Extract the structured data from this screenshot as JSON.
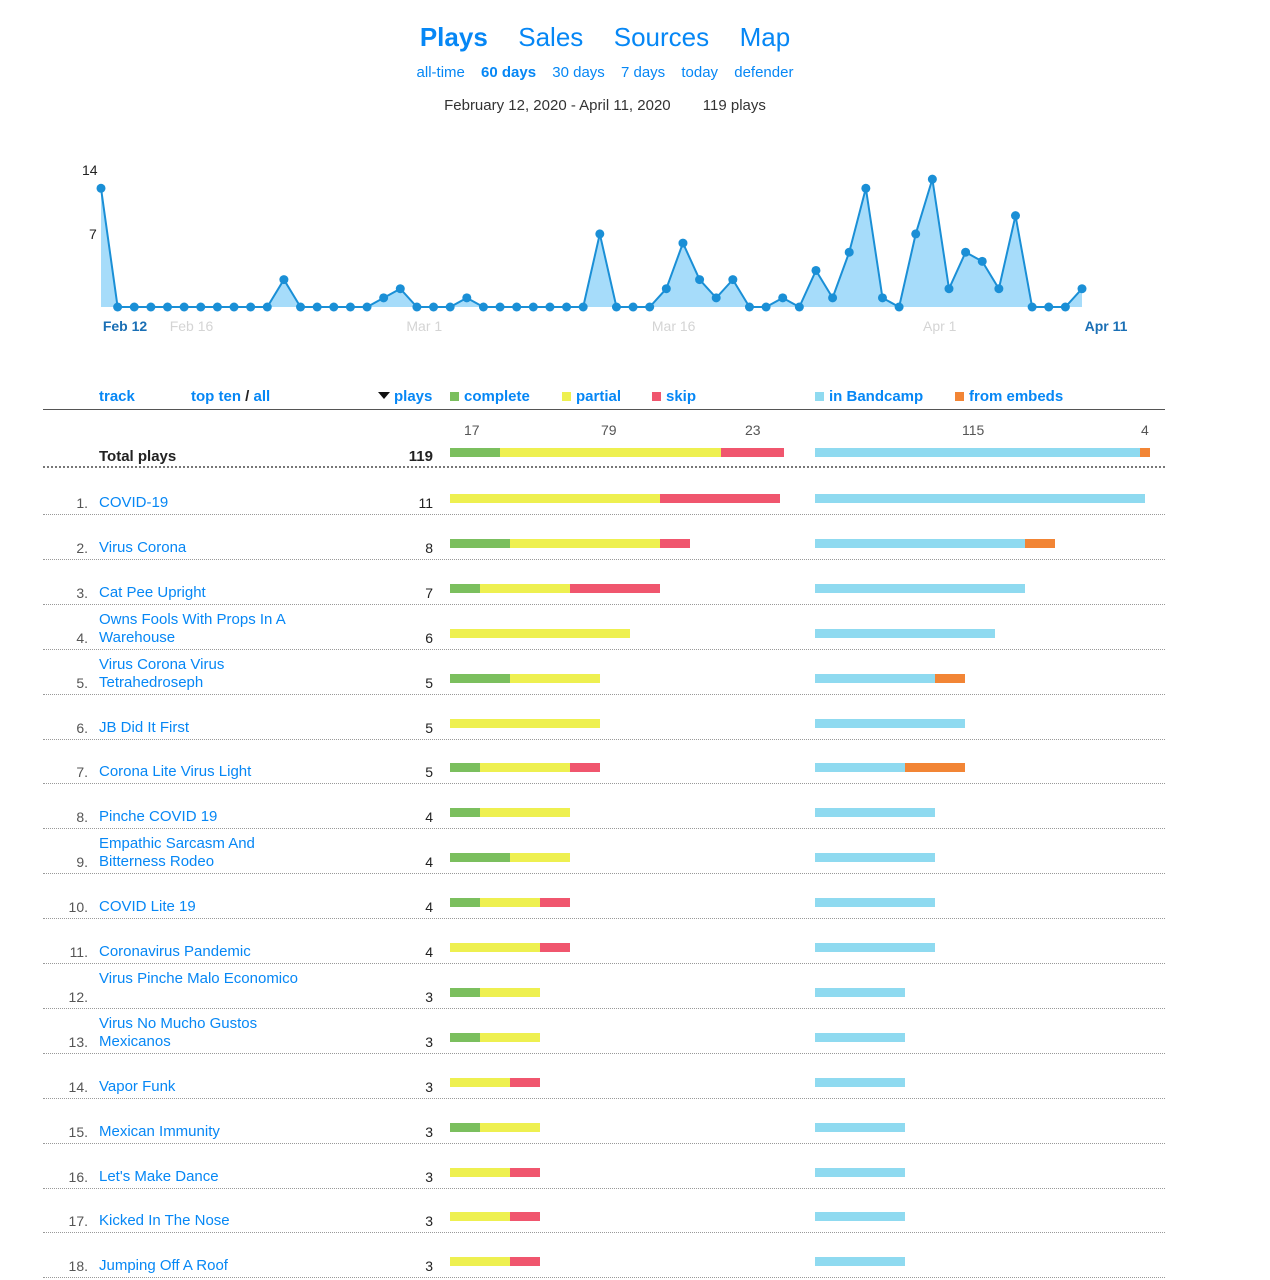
{
  "tabs": [
    {
      "label": "Plays",
      "active": true
    },
    {
      "label": "Sales",
      "active": false
    },
    {
      "label": "Sources",
      "active": false
    },
    {
      "label": "Map",
      "active": false
    }
  ],
  "ranges": [
    {
      "label": "all-time",
      "active": false
    },
    {
      "label": "60 days",
      "active": true
    },
    {
      "label": "30 days",
      "active": false
    },
    {
      "label": "7 days",
      "active": false
    },
    {
      "label": "today",
      "active": false
    },
    {
      "label": "defender",
      "active": false
    }
  ],
  "summary": {
    "date_range": "February 12, 2020 - April 11, 2020",
    "plays": "119 plays"
  },
  "chart_data": {
    "type": "area",
    "y_ticks": [
      "14",
      "7"
    ],
    "ylim": [
      0,
      15
    ],
    "x_labels": [
      {
        "label": "Feb 12",
        "index": 0,
        "bold": true
      },
      {
        "label": "Feb 16",
        "index": 4,
        "bold": false
      },
      {
        "label": "Mar 1",
        "index": 18,
        "bold": false
      },
      {
        "label": "Mar 16",
        "index": 33,
        "bold": false
      },
      {
        "label": "Apr 1",
        "index": 49,
        "bold": false
      },
      {
        "label": "Apr 11",
        "index": 59,
        "bold": true
      }
    ],
    "values": [
      13,
      0,
      0,
      0,
      0,
      0,
      0,
      0,
      0,
      0,
      0,
      3,
      0,
      0,
      0,
      0,
      0,
      1,
      2,
      0,
      0,
      0,
      1,
      0,
      0,
      0,
      0,
      0,
      0,
      0,
      8,
      0,
      0,
      0,
      2,
      7,
      3,
      1,
      3,
      0,
      0,
      1,
      0,
      4,
      1,
      6,
      13,
      1,
      0,
      8,
      14,
      2,
      6,
      5,
      2,
      10,
      0,
      0,
      0,
      2
    ],
    "colors": {
      "fill": "#a6dcfa",
      "line": "#1a8fd6",
      "point": "#1a8fd6"
    }
  },
  "table": {
    "headers": {
      "track": "track",
      "top_ten": "top ten",
      "slash": "/",
      "all": "all",
      "plays": "plays",
      "complete": "complete",
      "partial": "partial",
      "skip": "skip",
      "in_bandcamp": "in Bandcamp",
      "from_embeds": "from embeds"
    },
    "totals": {
      "label": "Total plays",
      "plays": "119",
      "complete": "17",
      "partial": "79",
      "skip": "23",
      "in_bandcamp": "115",
      "from_embeds": "4"
    },
    "rows": [
      {
        "rank": "1.",
        "name": "COVID-19",
        "plays": "11",
        "complete": 0,
        "partial": 7,
        "skip": 4,
        "bandcamp": 11,
        "embeds": 0
      },
      {
        "rank": "2.",
        "name": "Virus Corona",
        "plays": "8",
        "complete": 2,
        "partial": 5,
        "skip": 1,
        "bandcamp": 7,
        "embeds": 1
      },
      {
        "rank": "3.",
        "name": "Cat Pee Upright",
        "plays": "7",
        "complete": 1,
        "partial": 3,
        "skip": 3,
        "bandcamp": 7,
        "embeds": 0
      },
      {
        "rank": "4.",
        "name": "Owns Fools With Props In A Warehouse",
        "plays": "6",
        "complete": 0,
        "partial": 6,
        "skip": 0,
        "bandcamp": 6,
        "embeds": 0
      },
      {
        "rank": "5.",
        "name": "Virus Corona Virus Tetrahedroseph",
        "plays": "5",
        "complete": 2,
        "partial": 3,
        "skip": 0,
        "bandcamp": 4,
        "embeds": 1
      },
      {
        "rank": "6.",
        "name": "JB Did It First",
        "plays": "5",
        "complete": 0,
        "partial": 5,
        "skip": 0,
        "bandcamp": 5,
        "embeds": 0
      },
      {
        "rank": "7.",
        "name": "Corona Lite Virus Light",
        "plays": "5",
        "complete": 1,
        "partial": 3,
        "skip": 1,
        "bandcamp": 3,
        "embeds": 2
      },
      {
        "rank": "8.",
        "name": "Pinche COVID 19",
        "plays": "4",
        "complete": 1,
        "partial": 3,
        "skip": 0,
        "bandcamp": 4,
        "embeds": 0
      },
      {
        "rank": "9.",
        "name": "Empathic Sarcasm And Bitterness Rodeo",
        "plays": "4",
        "complete": 2,
        "partial": 2,
        "skip": 0,
        "bandcamp": 4,
        "embeds": 0
      },
      {
        "rank": "10.",
        "name": "COVID Lite 19",
        "plays": "4",
        "complete": 1,
        "partial": 2,
        "skip": 1,
        "bandcamp": 4,
        "embeds": 0
      },
      {
        "rank": "11.",
        "name": "Coronavirus Pandemic",
        "plays": "4",
        "complete": 0,
        "partial": 3,
        "skip": 1,
        "bandcamp": 4,
        "embeds": 0
      },
      {
        "rank": "12.",
        "name": "Virus Pinche Malo Economico",
        "plays": "3",
        "complete": 1,
        "partial": 2,
        "skip": 0,
        "bandcamp": 3,
        "embeds": 0
      },
      {
        "rank": "13.",
        "name": "Virus No Mucho Gustos Mexicanos",
        "plays": "3",
        "complete": 1,
        "partial": 2,
        "skip": 0,
        "bandcamp": 3,
        "embeds": 0
      },
      {
        "rank": "14.",
        "name": "Vapor Funk",
        "plays": "3",
        "complete": 0,
        "partial": 2,
        "skip": 1,
        "bandcamp": 3,
        "embeds": 0
      },
      {
        "rank": "15.",
        "name": "Mexican Immunity",
        "plays": "3",
        "complete": 1,
        "partial": 2,
        "skip": 0,
        "bandcamp": 3,
        "embeds": 0
      },
      {
        "rank": "16.",
        "name": "Let's Make Dance",
        "plays": "3",
        "complete": 0,
        "partial": 2,
        "skip": 1,
        "bandcamp": 3,
        "embeds": 0
      },
      {
        "rank": "17.",
        "name": "Kicked In The Nose",
        "plays": "3",
        "complete": 0,
        "partial": 2,
        "skip": 1,
        "bandcamp": 3,
        "embeds": 0
      },
      {
        "rank": "18.",
        "name": "Jumping Off A Roof",
        "plays": "3",
        "complete": 0,
        "partial": 2,
        "skip": 1,
        "bandcamp": 3,
        "embeds": 0
      }
    ]
  },
  "colors": {
    "link": "#0687f5",
    "complete": "#7bbf5e",
    "partial": "#eef050",
    "skip": "#f0566e",
    "in_bandcamp": "#8fdaf0",
    "from_embeds": "#f28535"
  }
}
